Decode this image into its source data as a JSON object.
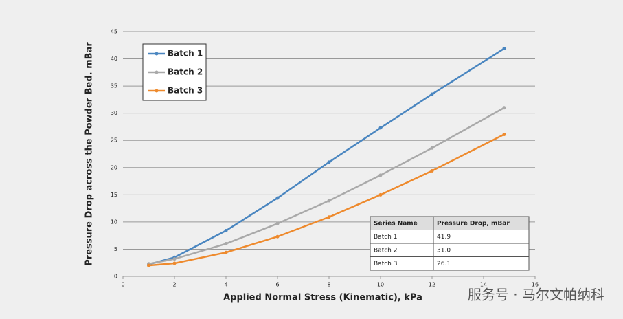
{
  "chart_data": {
    "type": "line",
    "x_label": "Applied Normal Stress (Kinematic), kPa",
    "y_label": "Pressure Drop across the Powder Bed. mBar",
    "x": [
      1,
      2,
      4,
      6,
      8,
      10,
      12,
      14.8
    ],
    "series": [
      {
        "name": "Batch 1",
        "color": "#4a86c0",
        "values": [
          2.2,
          3.5,
          8.4,
          14.4,
          21.0,
          27.3,
          33.5,
          41.9
        ]
      },
      {
        "name": "Batch 2",
        "color": "#a9a9a9",
        "values": [
          2.3,
          3.2,
          6.0,
          9.7,
          13.9,
          18.6,
          23.6,
          31.0
        ]
      },
      {
        "name": "Batch 3",
        "color": "#ee8a2d",
        "values": [
          2.0,
          2.4,
          4.4,
          7.3,
          10.9,
          15.0,
          19.4,
          26.1
        ]
      }
    ],
    "xlim": [
      0,
      16
    ],
    "xticks": [
      0,
      2,
      4,
      6,
      8,
      10,
      12,
      14,
      16
    ],
    "ylim": [
      0,
      45
    ],
    "yticks": [
      0,
      5,
      10,
      15,
      20,
      25,
      30,
      35,
      40,
      45
    ],
    "grid": true,
    "legend": "top-left",
    "table": {
      "header": [
        "Series Name",
        "Pressure Drop, mBar"
      ],
      "rows": [
        [
          "Batch 1",
          "41.9"
        ],
        [
          "Batch 2",
          "31.0"
        ],
        [
          "Batch 3",
          "26.1"
        ]
      ]
    }
  },
  "watermark": "服务号 · 马尔文帕纳科"
}
